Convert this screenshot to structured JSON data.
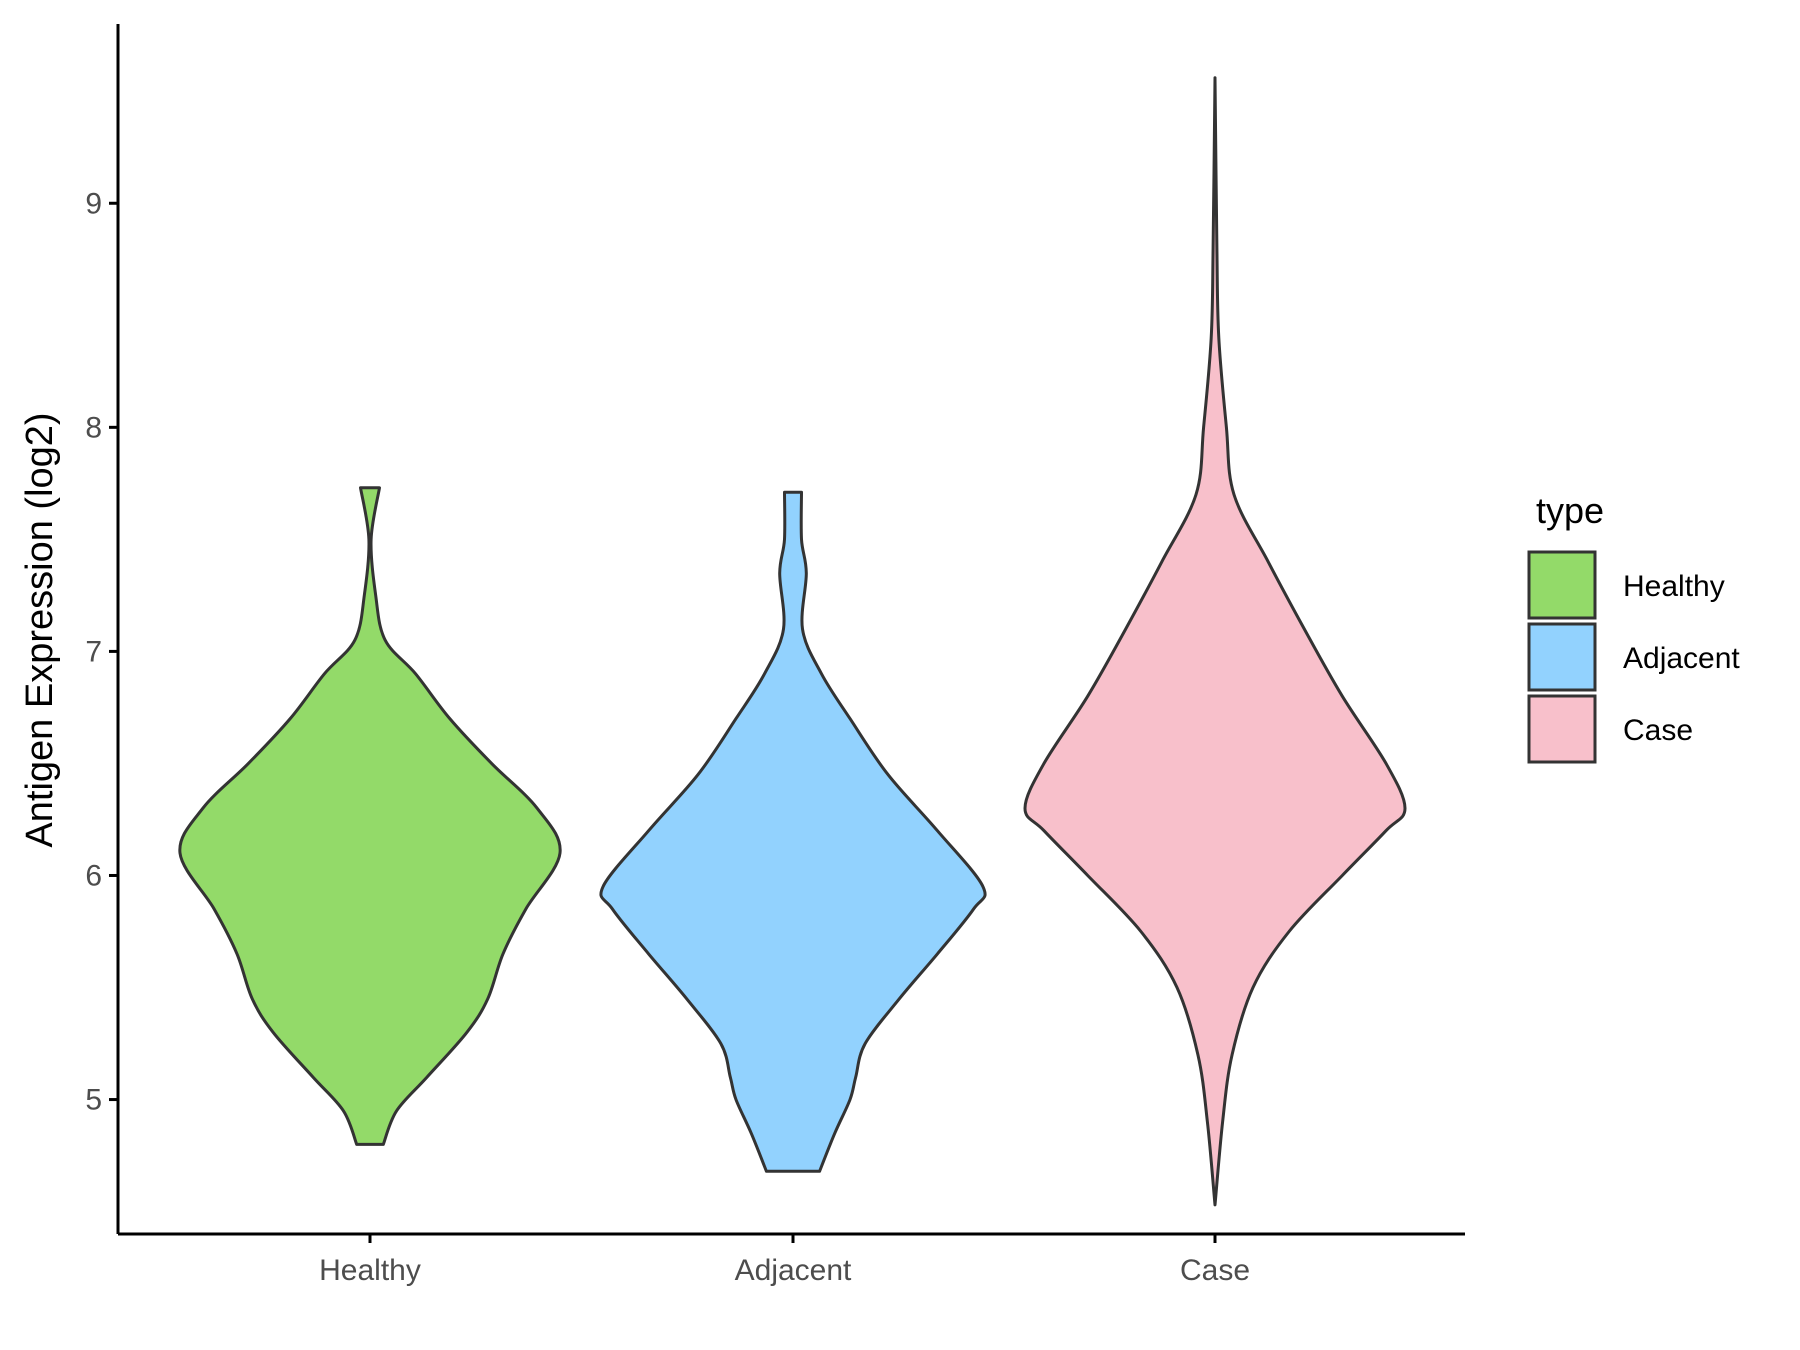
{
  "chart_data": {
    "type": "violin",
    "title": "",
    "xlabel": "",
    "ylabel": "Antigen Expression (log2)",
    "categories": [
      "Healthy",
      "Adjacent",
      "Case"
    ],
    "ylim": [
      4.4,
      9.8
    ],
    "y_ticks": [
      5,
      6,
      7,
      8,
      9
    ],
    "grid": false,
    "legend": {
      "title": "type",
      "position": "right",
      "entries": [
        "Healthy",
        "Adjacent",
        "Case"
      ]
    },
    "colors": {
      "Healthy": "#93DA69",
      "Adjacent": "#92D2FE",
      "Case": "#F8C0CB",
      "outline": "#333333"
    },
    "series": [
      {
        "name": "Healthy",
        "min": 4.8,
        "max": 7.73,
        "density_profile": [
          [
            4.8,
            0.07
          ],
          [
            4.95,
            0.14
          ],
          [
            5.1,
            0.3
          ],
          [
            5.3,
            0.51
          ],
          [
            5.45,
            0.62
          ],
          [
            5.65,
            0.7
          ],
          [
            5.85,
            0.82
          ],
          [
            6.1,
            1.0
          ],
          [
            6.3,
            0.88
          ],
          [
            6.5,
            0.64
          ],
          [
            6.7,
            0.42
          ],
          [
            6.9,
            0.24
          ],
          [
            7.05,
            0.08
          ],
          [
            7.25,
            0.03
          ],
          [
            7.5,
            0.006
          ],
          [
            7.73,
            0.05
          ]
        ]
      },
      {
        "name": "Adjacent",
        "min": 4.68,
        "max": 7.71,
        "density_profile": [
          [
            4.68,
            0.14
          ],
          [
            4.85,
            0.22
          ],
          [
            5.0,
            0.3
          ],
          [
            5.1,
            0.33
          ],
          [
            5.25,
            0.38
          ],
          [
            5.45,
            0.56
          ],
          [
            5.65,
            0.76
          ],
          [
            5.85,
            0.95
          ],
          [
            5.95,
            1.0
          ],
          [
            6.2,
            0.76
          ],
          [
            6.45,
            0.5
          ],
          [
            6.7,
            0.3
          ],
          [
            6.9,
            0.15
          ],
          [
            7.1,
            0.05
          ],
          [
            7.35,
            0.07
          ],
          [
            7.5,
            0.045
          ],
          [
            7.71,
            0.045
          ]
        ]
      },
      {
        "name": "Case",
        "min": 4.53,
        "max": 9.56,
        "density_profile": [
          [
            4.53,
            0.0
          ],
          [
            4.9,
            0.04
          ],
          [
            5.2,
            0.09
          ],
          [
            5.5,
            0.2
          ],
          [
            5.75,
            0.39
          ],
          [
            6.0,
            0.67
          ],
          [
            6.2,
            0.9
          ],
          [
            6.3,
            1.0
          ],
          [
            6.5,
            0.9
          ],
          [
            6.8,
            0.67
          ],
          [
            7.1,
            0.47
          ],
          [
            7.4,
            0.28
          ],
          [
            7.7,
            0.1
          ],
          [
            8.0,
            0.06
          ],
          [
            8.4,
            0.02
          ],
          [
            8.8,
            0.01
          ],
          [
            9.56,
            0.0
          ]
        ]
      }
    ]
  }
}
